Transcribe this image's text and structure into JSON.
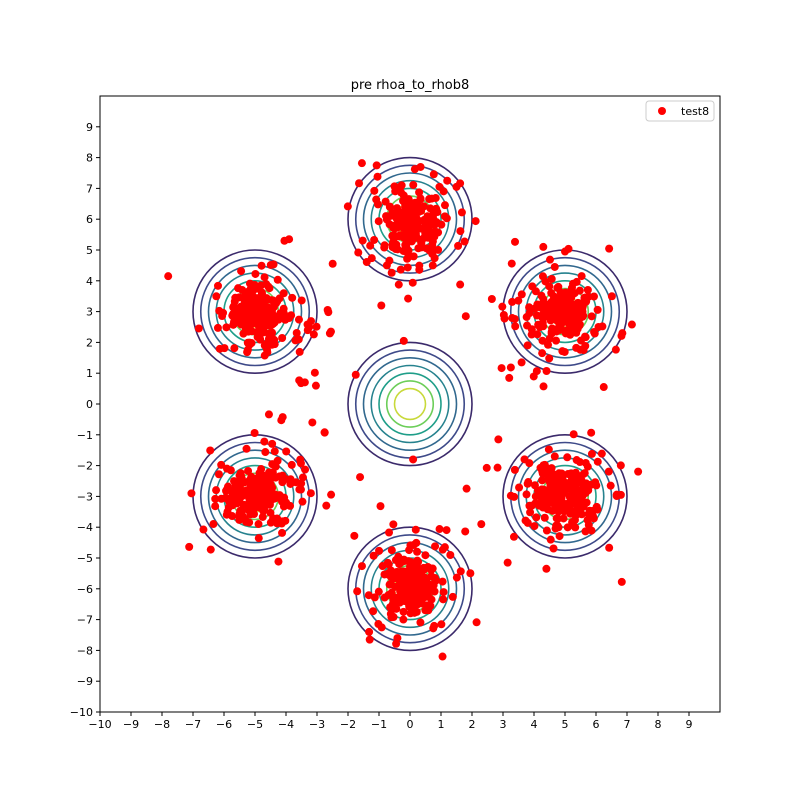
{
  "chart_data": {
    "type": "scatter",
    "title": "pre rhoa_to_rhob8",
    "xlabel": "",
    "ylabel": "",
    "xlim": [
      -10,
      10
    ],
    "ylim": [
      -10,
      10
    ],
    "x_ticks": [
      -10,
      -9,
      -8,
      -7,
      -6,
      -5,
      -4,
      -3,
      -2,
      -1,
      0,
      1,
      2,
      3,
      4,
      5,
      6,
      7,
      8,
      9
    ],
    "y_ticks": [
      -10,
      -9,
      -8,
      -7,
      -6,
      -5,
      -4,
      -3,
      -2,
      -1,
      0,
      1,
      2,
      3,
      4,
      5,
      6,
      7,
      8,
      9
    ],
    "grid": false,
    "legend": {
      "position": "top-right",
      "entries": [
        {
          "label": "test8",
          "color": "#ff0000"
        }
      ]
    },
    "contours": {
      "centers": [
        [
          0,
          0
        ],
        [
          0,
          6
        ],
        [
          0,
          -6
        ],
        [
          5,
          3
        ],
        [
          5,
          -3
        ],
        [
          -5,
          3
        ],
        [
          -5,
          -3
        ]
      ],
      "radii": [
        2.0,
        1.75,
        1.5,
        1.25,
        1.0,
        0.75,
        0.5
      ],
      "colors": [
        "#3b2a6b",
        "#3e4a89",
        "#31688e",
        "#26828e",
        "#1f9e89",
        "#6cce59",
        "#c8d93a"
      ]
    },
    "series": [
      {
        "name": "test8",
        "color": "#ff0000",
        "centers": [
          [
            0,
            6
          ],
          [
            0,
            -6
          ],
          [
            5,
            3
          ],
          [
            5,
            -3
          ],
          [
            -5,
            3
          ],
          [
            -5,
            -3
          ]
        ],
        "points_per_cluster": 230,
        "core_spread": 0.45,
        "tail_spread": 1.1,
        "outliers": [
          [
            -7.8,
            4.15
          ],
          [
            -7.05,
            -2.9
          ],
          [
            1.05,
            -8.2
          ],
          [
            4.4,
            -5.35
          ],
          [
            1.5,
            7.05
          ],
          [
            1.2,
            7.25
          ],
          [
            -3.9,
            5.35
          ],
          [
            -4.05,
            5.3
          ],
          [
            2.3,
            -3.9
          ],
          [
            -2.7,
            -3.3
          ],
          [
            4.3,
            5.1
          ],
          [
            5.0,
            4.95
          ],
          [
            -0.2,
            2.05
          ],
          [
            0.1,
            -1.8
          ],
          [
            -1.75,
            0.95
          ],
          [
            1.8,
            2.85
          ],
          [
            3.6,
            1.35
          ],
          [
            2.85,
            -1.15
          ],
          [
            -3.15,
            -0.6
          ],
          [
            -2.55,
            2.35
          ],
          [
            6.25,
            0.55
          ],
          [
            6.85,
            2.3
          ],
          [
            -1.3,
            -7.65
          ],
          [
            3.15,
            -5.15
          ]
        ]
      }
    ]
  }
}
